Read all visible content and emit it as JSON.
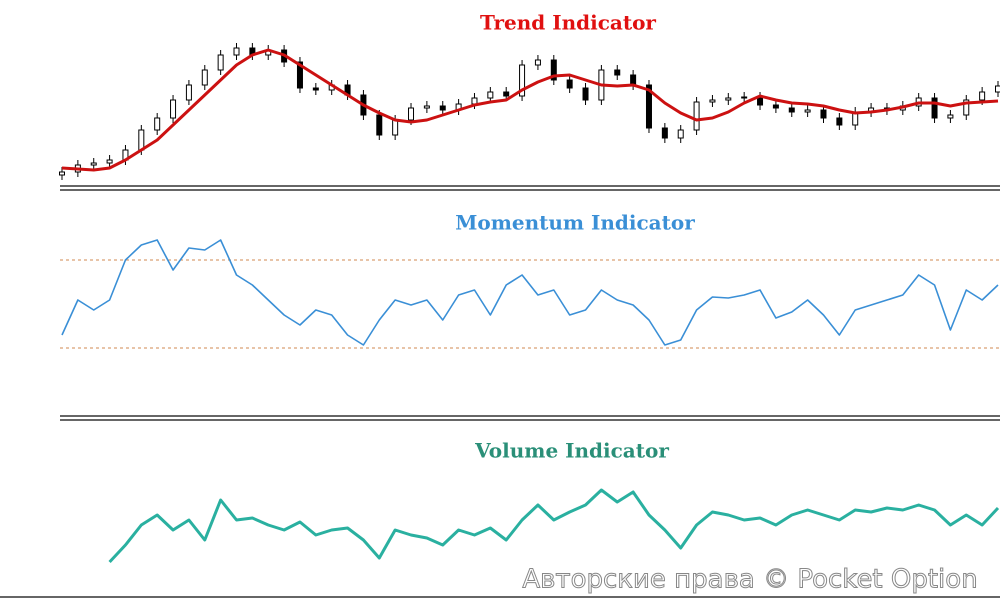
{
  "chart_data": [
    {
      "type": "candlestick",
      "title": "Trend Indicator",
      "title_color": "#e01010",
      "up_color": "#ffffff",
      "down_color": "#000000",
      "ylim": [
        0,
        140
      ],
      "open": [
        5,
        8,
        15,
        17,
        20,
        30,
        50,
        62,
        80,
        95,
        110,
        125,
        132,
        125,
        130,
        118,
        92,
        90,
        95,
        85,
        65,
        45,
        60,
        72,
        74,
        70,
        76,
        82,
        88,
        84,
        115,
        120,
        100,
        92,
        80,
        110,
        105,
        95,
        52,
        42,
        50,
        78,
        80,
        82,
        83,
        75,
        72,
        68,
        70,
        62,
        55,
        68,
        72,
        70,
        74,
        82,
        62,
        65,
        80,
        88
      ],
      "high": [
        13,
        20,
        22,
        25,
        35,
        55,
        67,
        85,
        100,
        115,
        130,
        137,
        137,
        135,
        135,
        123,
        97,
        100,
        100,
        90,
        70,
        65,
        77,
        79,
        79,
        81,
        87,
        93,
        93,
        120,
        125,
        125,
        105,
        97,
        115,
        115,
        110,
        100,
        57,
        55,
        83,
        85,
        87,
        88,
        88,
        80,
        77,
        75,
        75,
        67,
        73,
        77,
        77,
        79,
        87,
        87,
        70,
        85,
        93,
        99
      ],
      "low": [
        0,
        3,
        10,
        12,
        15,
        25,
        45,
        57,
        75,
        90,
        105,
        120,
        120,
        120,
        113,
        87,
        85,
        85,
        80,
        60,
        40,
        40,
        55,
        67,
        65,
        65,
        71,
        77,
        79,
        79,
        110,
        95,
        87,
        75,
        75,
        100,
        90,
        47,
        37,
        37,
        45,
        73,
        75,
        77,
        70,
        67,
        63,
        63,
        57,
        50,
        50,
        63,
        65,
        65,
        69,
        57,
        57,
        60,
        75,
        83
      ],
      "close": [
        8,
        15,
        17,
        20,
        30,
        50,
        62,
        80,
        95,
        110,
        125,
        132,
        125,
        130,
        118,
        92,
        90,
        95,
        85,
        65,
        45,
        60,
        72,
        74,
        70,
        76,
        82,
        88,
        84,
        115,
        120,
        100,
        92,
        80,
        110,
        105,
        95,
        52,
        42,
        50,
        78,
        80,
        82,
        83,
        75,
        72,
        68,
        70,
        62,
        55,
        68,
        72,
        70,
        74,
        82,
        62,
        65,
        80,
        88,
        94
      ],
      "ma": {
        "color": "#cc1111",
        "values": [
          12,
          11,
          10,
          12,
          20,
          30,
          40,
          55,
          70,
          85,
          100,
          115,
          125,
          130,
          125,
          115,
          105,
          95,
          85,
          75,
          67,
          60,
          58,
          60,
          65,
          70,
          75,
          78,
          80,
          90,
          98,
          104,
          105,
          100,
          95,
          94,
          95,
          90,
          77,
          67,
          60,
          62,
          68,
          77,
          84,
          80,
          77,
          76,
          74,
          70,
          67,
          68,
          70,
          73,
          77,
          77,
          74,
          77,
          78,
          79
        ]
      }
    },
    {
      "type": "line",
      "title": "Momentum Indicator",
      "title_color": "#3a8fd6",
      "color": "#3a8fd6",
      "ylim": [
        0,
        150
      ],
      "levels": [
        110,
        22
      ],
      "level_color": "#d08a50",
      "values": [
        35,
        70,
        60,
        70,
        110,
        125,
        130,
        100,
        122,
        120,
        130,
        95,
        85,
        70,
        55,
        45,
        60,
        55,
        35,
        25,
        50,
        70,
        65,
        70,
        50,
        75,
        80,
        55,
        85,
        95,
        75,
        80,
        55,
        60,
        80,
        70,
        65,
        50,
        25,
        30,
        60,
        73,
        72,
        75,
        80,
        52,
        58,
        70,
        55,
        35,
        60,
        65,
        70,
        75,
        95,
        85,
        40,
        80,
        70,
        85
      ]
    },
    {
      "type": "line",
      "title": "Volume Indicator",
      "title_color": "#2a8f78",
      "color": "#2ab0a0",
      "ylim": [
        0,
        120
      ],
      "values": [
        null,
        null,
        null,
        18,
        35,
        55,
        65,
        50,
        60,
        40,
        80,
        60,
        62,
        55,
        50,
        58,
        45,
        50,
        52,
        40,
        22,
        50,
        45,
        42,
        35,
        50,
        45,
        52,
        40,
        60,
        75,
        60,
        68,
        75,
        90,
        78,
        88,
        65,
        50,
        32,
        55,
        68,
        65,
        60,
        62,
        55,
        65,
        70,
        65,
        60,
        70,
        68,
        72,
        70,
        75,
        70,
        55,
        65,
        55,
        72
      ]
    }
  ],
  "watermark": "Авторские права © Pocket Option"
}
